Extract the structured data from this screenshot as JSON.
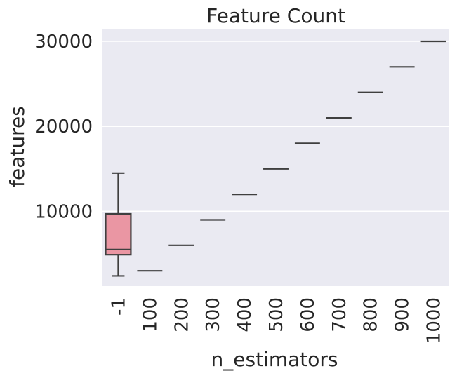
{
  "chart_data": {
    "type": "box",
    "title": "Feature Count",
    "xlabel": "n_estimators",
    "ylabel": "features",
    "categories": [
      "-1",
      "100",
      "200",
      "300",
      "400",
      "500",
      "600",
      "700",
      "800",
      "900",
      "1000"
    ],
    "boxes": [
      {
        "category": "-1",
        "whislo": 2400,
        "q1": 4900,
        "med": 5500,
        "q3": 9700,
        "whishi": 14500,
        "color": "#ea96a3"
      },
      {
        "category": "100",
        "whislo": 3000,
        "q1": 3000,
        "med": 3000,
        "q3": 3000,
        "whishi": 3000
      },
      {
        "category": "200",
        "whislo": 6000,
        "q1": 6000,
        "med": 6000,
        "q3": 6000,
        "whishi": 6000
      },
      {
        "category": "300",
        "whislo": 9000,
        "q1": 9000,
        "med": 9000,
        "q3": 9000,
        "whishi": 9000
      },
      {
        "category": "400",
        "whislo": 12000,
        "q1": 12000,
        "med": 12000,
        "q3": 12000,
        "whishi": 12000
      },
      {
        "category": "500",
        "whislo": 15000,
        "q1": 15000,
        "med": 15000,
        "q3": 15000,
        "whishi": 15000
      },
      {
        "category": "600",
        "whislo": 18000,
        "q1": 18000,
        "med": 18000,
        "q3": 18000,
        "whishi": 18000
      },
      {
        "category": "700",
        "whislo": 21000,
        "q1": 21000,
        "med": 21000,
        "q3": 21000,
        "whishi": 21000
      },
      {
        "category": "800",
        "whislo": 24000,
        "q1": 24000,
        "med": 24000,
        "q3": 24000,
        "whishi": 24000
      },
      {
        "category": "900",
        "whislo": 27000,
        "q1": 27000,
        "med": 27000,
        "q3": 27000,
        "whishi": 27000
      },
      {
        "category": "1000",
        "whislo": 30000,
        "q1": 30000,
        "med": 30000,
        "q3": 30000,
        "whishi": 30000
      }
    ],
    "yticks": [
      10000,
      20000,
      30000
    ],
    "ytick_labels": [
      "10000",
      "20000",
      "30000"
    ],
    "ylim": [
      1200,
      31400
    ],
    "grid": true
  }
}
